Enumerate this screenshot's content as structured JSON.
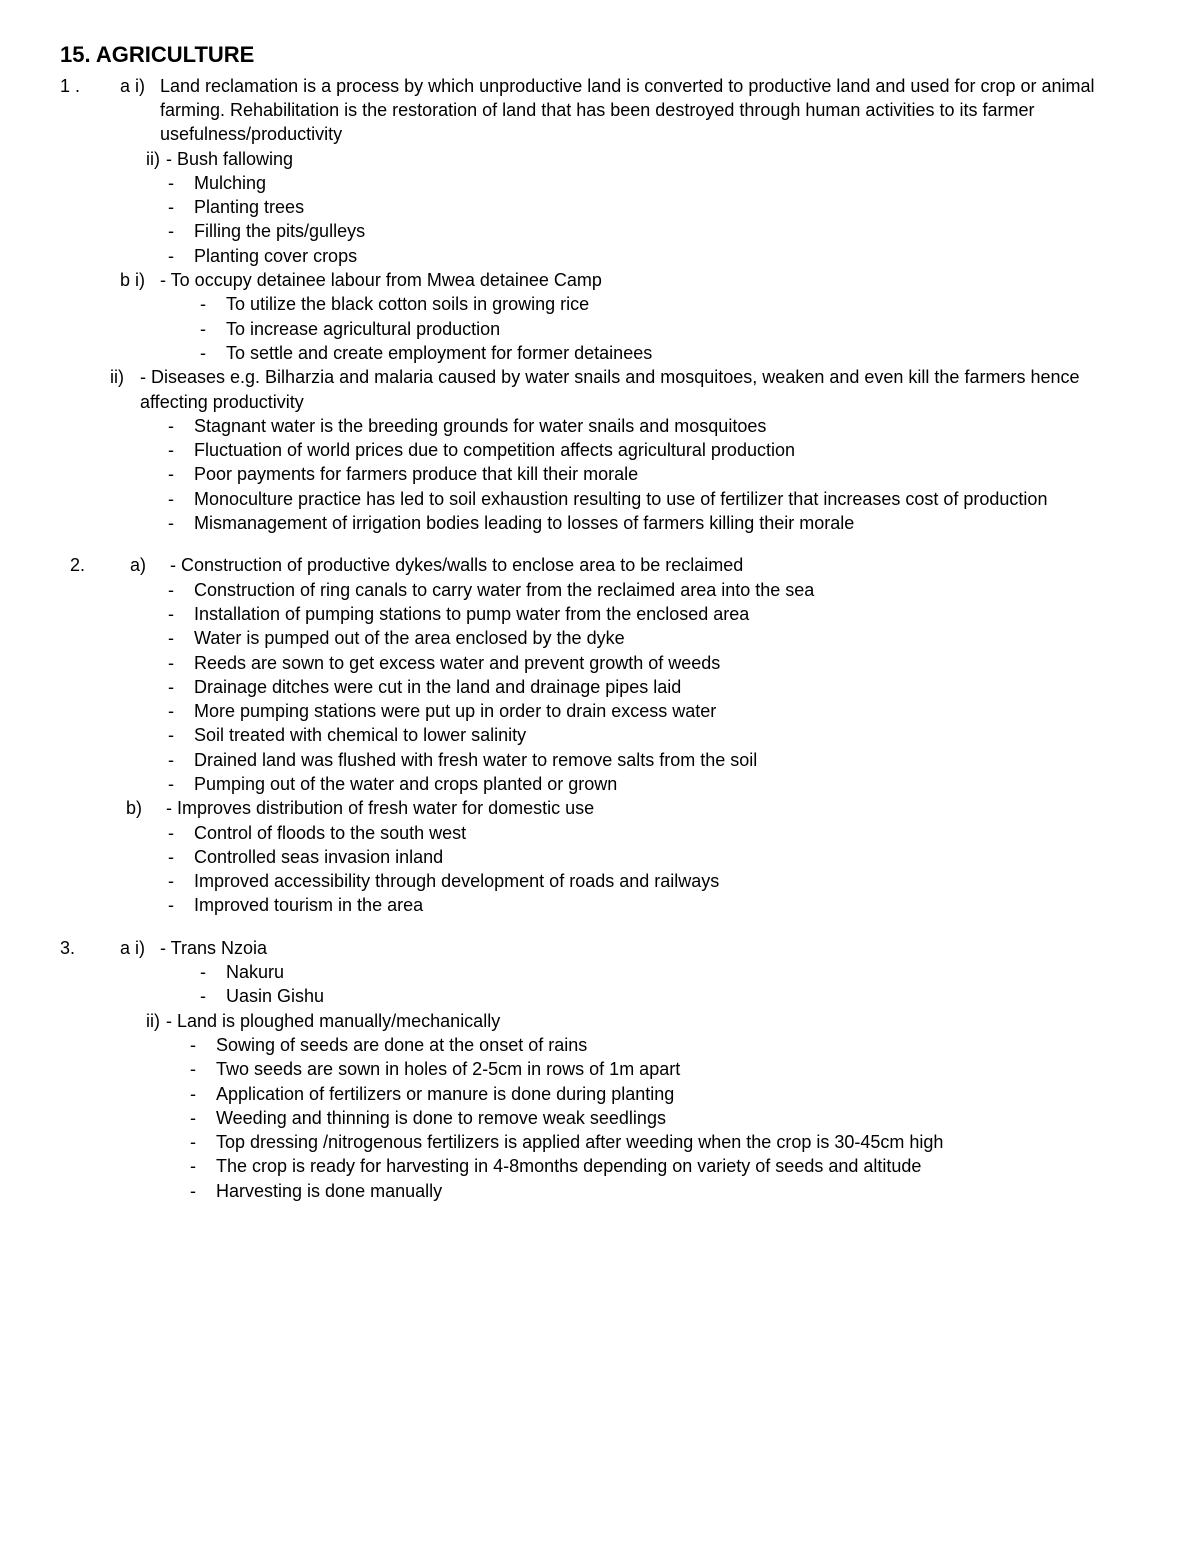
{
  "title": "15. AGRICULTURE",
  "q1": {
    "num": "1 .",
    "a_i_label": "a i)",
    "a_i_text": "Land reclamation is a process by which unproductive land is converted to productive land and  used for crop or animal farming. Rehabilitation is the restoration of land that has been  destroyed through human activities to its farmer usefulness/productivity",
    "a_ii_label": "ii)",
    "a_ii_first": "- Bush fallowing",
    "a_ii_items": [
      "Mulching",
      "Planting trees",
      "Filling the pits/gulleys",
      "Planting cover crops"
    ],
    "b_i_label": "b i)",
    "b_i_first": "- To occupy detainee labour from Mwea detainee Camp",
    "b_i_items": [
      "To utilize the black cotton soils in growing rice",
      "To increase agricultural production",
      "To settle and create employment for former detainees"
    ],
    "b_ii_label": "ii)",
    "b_ii_first": "- Diseases e.g. Bilharzia and malaria caused by water snails and mosquitoes, weaken and even  kill the farmers hence affecting productivity",
    "b_ii_items": [
      "Stagnant water is the breeding grounds for water snails and mosquitoes",
      "Fluctuation of world prices due to competition  affects agricultural production",
      "Poor payments for farmers produce that kill their morale",
      "Monoculture practice has led to soil exhaustion resulting to use of fertilizer that increases cost of production",
      "Mismanagement of irrigation bodies leading to losses of farmers killing their morale"
    ]
  },
  "q2": {
    "num": "2.",
    "a_label": "a)",
    "a_first": "- Construction of productive dykes/walls to enclose area to be reclaimed",
    "a_items": [
      "Construction of ring canals to carry water from the reclaimed area into the sea",
      "Installation of pumping stations to pump water from the enclosed area",
      "Water is pumped out of the area enclosed by the dyke",
      "Reeds are sown to get excess water and prevent growth of weeds",
      "Drainage ditches were cut in the land and drainage pipes laid",
      "More pumping stations were put up in order  to drain excess water",
      "Soil treated with chemical to lower salinity",
      "Drained land was flushed with fresh water to remove salts from the soil",
      "Pumping out of the water and crops planted or grown"
    ],
    "b_label": "b)",
    "b_first": "- Improves distribution of fresh  water for domestic use",
    "b_items": [
      "Control of floods to the south west",
      "Controlled seas invasion inland",
      "Improved accessibility through development of roads and railways",
      "Improved tourism in the area"
    ]
  },
  "q3": {
    "num": "3.",
    "a_i_label": "a i)",
    "a_i_first": "- Trans Nzoia",
    "a_i_items": [
      "Nakuru",
      "Uasin Gishu"
    ],
    "a_ii_label": "ii)",
    "a_ii_first": "- Land is ploughed manually/mechanically",
    "a_ii_items": [
      "Sowing of seeds are done at the onset of rains",
      "Two seeds are sown in holes of 2-5cm in rows of 1m apart",
      "Application of fertilizers or manure is done during planting",
      "Weeding and thinning is done to remove weak seedlings",
      "Top dressing /nitrogenous fertilizers is applied after weeding when the crop is 30-45cm high",
      "The crop is ready for harvesting in 4-8months depending on variety of seeds and altitude",
      "Harvesting is done manually"
    ]
  }
}
